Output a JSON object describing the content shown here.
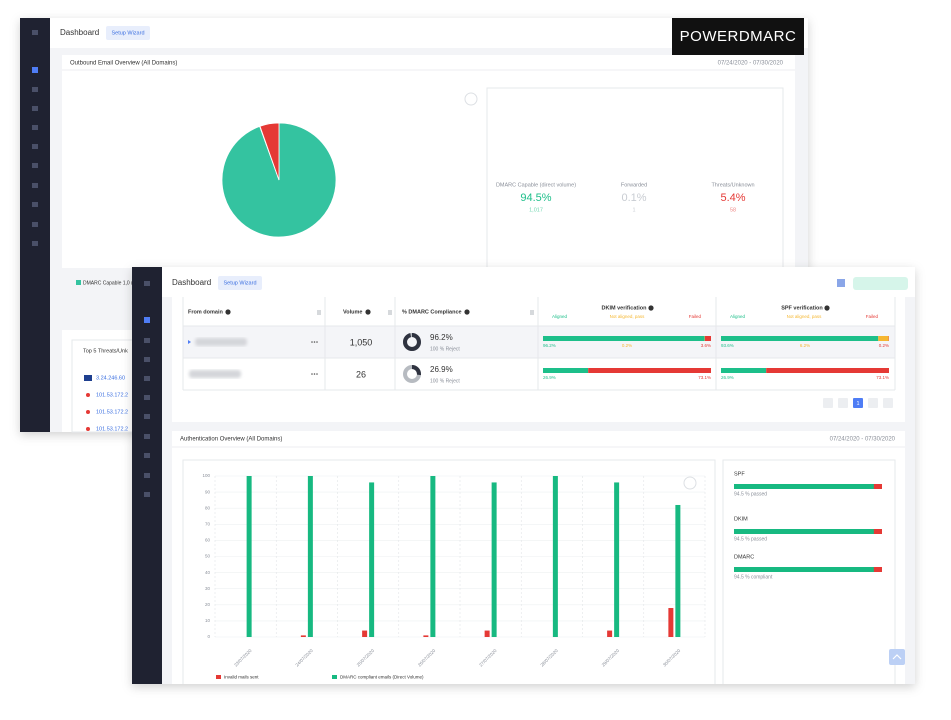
{
  "back": {
    "header": {
      "title": "Dashboard",
      "button": "Setup Wizard",
      "logo": "POWERDMARC"
    },
    "overview": {
      "title": "Outbound Email Overview (All Domains)",
      "date_range": "07/24/2020 - 07/30/2020",
      "legend": "DMARC Capable 1,0 (direct volume)",
      "stats": [
        {
          "label": "DMARC Capable (direct volume)",
          "value": "94.5%",
          "count": "1,017"
        },
        {
          "label": "Forwarded",
          "value": "0.1%",
          "count": "1"
        },
        {
          "label": "Threats/Unknown",
          "value": "5.4%",
          "count": "58"
        }
      ]
    },
    "threats": {
      "title": "Top 5 Threats/Unk",
      "ips": [
        "3.24.246.60",
        "101.53.172.2",
        "101.53.172.2",
        "101.53.172.2"
      ]
    }
  },
  "front": {
    "header": {
      "title": "Dashboard",
      "button": "Setup Wizard"
    },
    "table": {
      "columns": [
        "From domain",
        "Volume",
        "% DMARC Compliance"
      ],
      "dkim": {
        "title": "DKIM verification",
        "sub": [
          "Aligned",
          "Not aligned, pass",
          "Failed"
        ]
      },
      "spf": {
        "title": "SPF verification",
        "sub": [
          "Aligned",
          "Not aligned, pass",
          "Failed"
        ]
      },
      "rows": [
        {
          "volume": "1,050",
          "compliance": {
            "value": 96.2,
            "label": "96.2%"
          },
          "policy": "100 % Reject",
          "dkim": [
            {
              "value": 96.2,
              "label": "96.2%",
              "color": "#1dbf8a"
            },
            {
              "value": 0.2,
              "label": "0.2%",
              "color": "#f5b731"
            },
            {
              "value": 3.6,
              "label": "3.6%",
              "color": "#e53935"
            }
          ],
          "spf": [
            {
              "value": 93.6,
              "label": "93.6%",
              "color": "#1dbf8a"
            },
            {
              "value": 6.2,
              "label": "6.2%",
              "color": "#f5b731"
            },
            {
              "value": 0.2,
              "label": "0.2%",
              "color": "#e53935"
            }
          ]
        },
        {
          "volume": "26",
          "compliance": {
            "value": 26.9,
            "label": "26.9%"
          },
          "policy": "100 % Reject",
          "dkim": [
            {
              "value": 26.9,
              "label": "26.9%",
              "color": "#1dbf8a"
            },
            {
              "value": 73.1,
              "label": "73.1%",
              "color": "#e53935"
            }
          ],
          "spf": [
            {
              "value": 26.9,
              "label": "26.9%",
              "color": "#1dbf8a"
            },
            {
              "value": 73.1,
              "label": "73.1%",
              "color": "#e53935"
            }
          ]
        }
      ],
      "page": "1"
    },
    "auth": {
      "title": "Authentication Overview (All Domains)",
      "date_range": "07/24/2020 - 07/30/2020",
      "summary": [
        {
          "name": "SPF",
          "value": 94.5,
          "label": "94.5 % passed"
        },
        {
          "name": "DKIM",
          "value": 94.5,
          "label": "94.5 % passed"
        },
        {
          "name": "DMARC",
          "value": 94.5,
          "label": "94.5 % compliant"
        }
      ]
    }
  },
  "chart_data": [
    {
      "type": "pie",
      "values": [
        94.5,
        0.1,
        5.4
      ],
      "colors": [
        "#34c3a0",
        "#cfd3d8",
        "#e53935"
      ]
    },
    {
      "type": "bar",
      "categories": [
        "23/07/2020",
        "24/07/2020",
        "25/07/2020",
        "26/07/2020",
        "27/07/2020",
        "28/07/2020",
        "29/07/2020",
        "30/07/2020"
      ],
      "series": [
        {
          "name": "Invalid mails sent",
          "color": "#e53935",
          "values": [
            0,
            1,
            4,
            1,
            4,
            0,
            4,
            18
          ]
        },
        {
          "name": "DMARC compliant emails (Direct Volume)",
          "color": "#17b981",
          "values": [
            100,
            100,
            96,
            100,
            96,
            100,
            96,
            82
          ]
        }
      ],
      "ylim": [
        0,
        100
      ],
      "yticks": [
        0,
        10,
        20,
        30,
        40,
        50,
        60,
        70,
        80,
        90,
        100
      ],
      "grid": true
    }
  ]
}
